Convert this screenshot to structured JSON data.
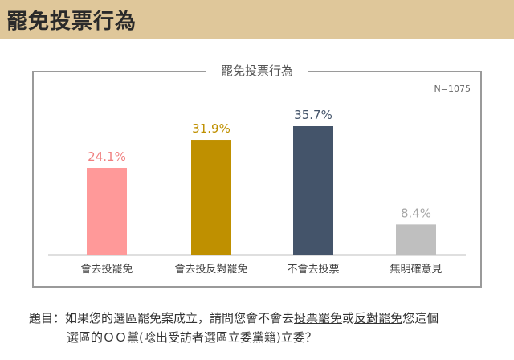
{
  "header": {
    "title": "罷免投票行為"
  },
  "chart_data": {
    "type": "bar",
    "title": "罷免投票行為",
    "note": "N=1075",
    "categories": [
      "會去投罷免",
      "會去投反對罷免",
      "不會去投票",
      "無明確意見"
    ],
    "values": [
      24.1,
      31.9,
      35.7,
      8.4
    ],
    "value_labels": [
      "24.1%",
      "31.9%",
      "35.7%",
      "8.4%"
    ],
    "colors": [
      "#ff9999",
      "#bf9000",
      "#44546a",
      "#bfbfbf"
    ],
    "label_colors": [
      "#f08080",
      "#bf9000",
      "#44546a",
      "#a6a6a6"
    ],
    "ylim": [
      0,
      40
    ]
  },
  "question": {
    "prefix": "題目：",
    "line1_a": "如果您的選區罷免案成立，請問您會不會去",
    "line1_u1": "投票罷免",
    "line1_b": "或",
    "line1_u2": "反對罷免",
    "line1_c": "您這個",
    "line2": "選區的ＯＯ黨(唸出受訪者選區立委黨籍)立委？"
  }
}
